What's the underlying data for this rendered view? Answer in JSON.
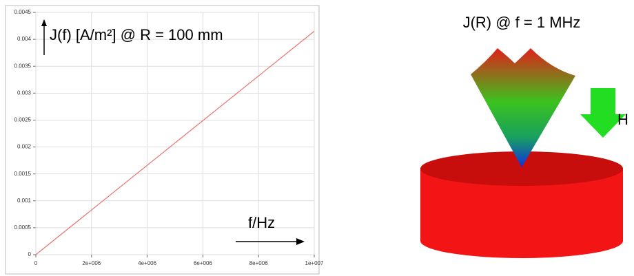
{
  "chart_data": {
    "type": "line",
    "annotations": [
      "J(f) [A/m²] @ R = 100 mm",
      "f/Hz"
    ],
    "x": [
      0,
      10000000
    ],
    "values": [
      0,
      0.00415
    ],
    "color": "#e8746e",
    "xlim": [
      0,
      10000000
    ],
    "xticks": [
      0,
      {
        "value": 2000000,
        "label": "2e+006"
      },
      {
        "value": 4000000,
        "label": "4e+006"
      },
      {
        "value": 6000000,
        "label": "6e+006"
      },
      {
        "value": 8000000,
        "label": "8e+006"
      },
      {
        "value": 10000000,
        "label": "1e+007"
      }
    ],
    "ylim": [
      0,
      0.0045
    ],
    "yticks": [
      0,
      0.0005,
      0.001,
      0.0015,
      0.002,
      0.0025,
      0.003,
      0.0035,
      0.004,
      0.0045
    ],
    "grid": true
  },
  "illustration": {
    "title": "J(R) @ f = 1 MHz",
    "field_label": "H"
  }
}
